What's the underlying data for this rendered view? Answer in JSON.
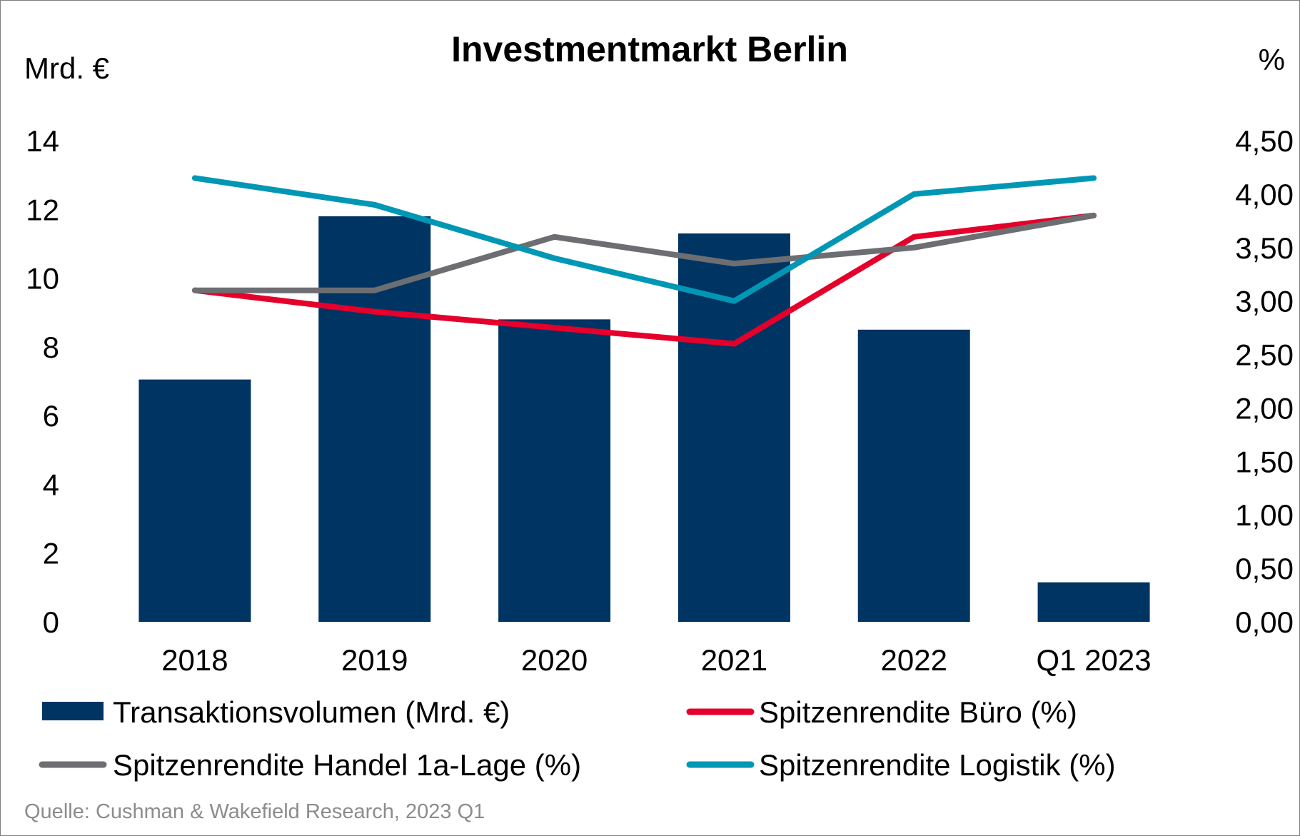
{
  "chart_data": {
    "type": "bar",
    "title": "Investmentmarkt Berlin",
    "ylabel": "Mrd. €",
    "y2label": "%",
    "categories": [
      "2018",
      "2019",
      "2020",
      "2021",
      "2022",
      "Q1 2023"
    ],
    "ylim": [
      0,
      14
    ],
    "y_ticks": [
      "0",
      "2",
      "4",
      "6",
      "8",
      "10",
      "12",
      "14"
    ],
    "y2lim": [
      0,
      4.5
    ],
    "y2_ticks": [
      "0,00",
      "0,50",
      "1,00",
      "1,50",
      "2,00",
      "2,50",
      "3,00",
      "3,50",
      "4,00",
      "4,50"
    ],
    "bar_series": {
      "name": "Transaktionsvolumen (Mrd. €)",
      "color": "#003463",
      "values": [
        7.05,
        11.8,
        8.8,
        11.3,
        8.5,
        1.15
      ]
    },
    "line_series": [
      {
        "name": "Spitzenrendite Büro (%)",
        "color": "#e4002b",
        "values": [
          3.1,
          2.9,
          2.75,
          2.6,
          3.6,
          3.8
        ]
      },
      {
        "name": "Spitzenrendite Handel 1a-Lage (%)",
        "color": "#6d6e71",
        "values": [
          3.1,
          3.1,
          3.6,
          3.35,
          3.5,
          3.8
        ]
      },
      {
        "name": "Spitzenrendite Logistik (%)",
        "color": "#0097b5",
        "values": [
          4.15,
          3.9,
          3.4,
          3.0,
          4.0,
          4.15
        ]
      }
    ],
    "legend_position": "bottom",
    "source": "Quelle: Cushman & Wakefield Research, 2023 Q1"
  }
}
